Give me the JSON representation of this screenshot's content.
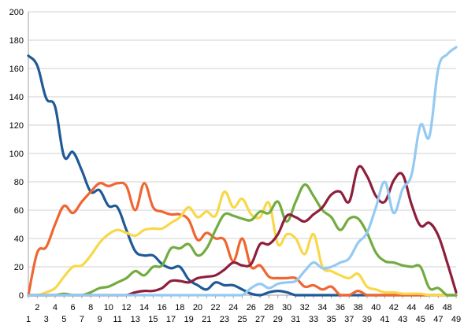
{
  "chart_data": {
    "type": "line",
    "x": [
      1,
      2,
      3,
      4,
      5,
      6,
      7,
      8,
      9,
      10,
      11,
      12,
      13,
      14,
      15,
      16,
      17,
      18,
      19,
      20,
      21,
      22,
      23,
      24,
      25,
      26,
      27,
      28,
      29,
      30,
      31,
      32,
      33,
      34,
      35,
      36,
      37,
      38,
      39,
      40,
      41,
      42,
      43,
      44,
      45,
      46,
      47,
      48,
      49
    ],
    "ylim": [
      0,
      200
    ],
    "yticks": [
      0,
      20,
      40,
      60,
      80,
      100,
      120,
      140,
      160,
      180,
      200
    ],
    "grid": true,
    "legend": "none",
    "series": [
      {
        "color": "#1f5a96",
        "values": [
          169,
          162,
          139,
          133,
          98,
          101,
          88,
          73,
          74,
          63,
          62,
          46,
          31,
          28,
          28,
          22,
          19,
          20,
          11,
          7,
          4,
          9,
          7,
          7,
          4,
          1,
          0,
          2,
          3,
          2,
          0,
          0,
          0,
          0,
          0,
          0,
          0,
          0,
          0,
          0,
          0,
          0,
          0,
          0,
          0,
          0,
          0,
          0,
          0
        ]
      },
      {
        "color": "#f06530",
        "values": [
          0,
          30,
          34,
          50,
          63,
          58,
          66,
          73,
          79,
          77,
          79,
          77,
          60,
          79,
          62,
          59,
          57,
          57,
          53,
          39,
          44,
          40,
          39,
          24,
          40,
          20,
          21,
          13,
          12,
          12,
          12,
          6,
          7,
          4,
          6,
          0,
          0,
          3,
          0,
          0,
          0,
          0,
          0,
          0,
          0,
          0,
          0,
          0,
          0
        ]
      },
      {
        "color": "#f8d84a",
        "values": [
          0,
          0,
          2,
          5,
          13,
          20,
          21,
          28,
          37,
          43,
          46,
          44,
          42,
          46,
          47,
          47,
          51,
          55,
          62,
          55,
          59,
          56,
          73,
          62,
          68,
          57,
          55,
          65,
          36,
          43,
          40,
          29,
          43,
          20,
          17,
          14,
          12,
          15,
          6,
          4,
          2,
          2,
          1,
          1,
          1,
          0,
          0,
          0,
          0
        ]
      },
      {
        "color": "#72ac40",
        "values": [
          0,
          0,
          0,
          0,
          1,
          0,
          0,
          2,
          5,
          6,
          9,
          12,
          17,
          14,
          20,
          21,
          33,
          33,
          36,
          28,
          33,
          46,
          57,
          56,
          54,
          53,
          59,
          58,
          66,
          52,
          66,
          78,
          70,
          60,
          55,
          46,
          54,
          54,
          44,
          30,
          24,
          23,
          21,
          20,
          20,
          5,
          5,
          0,
          0
        ]
      },
      {
        "color": "#8e1f3c",
        "values": [
          0,
          0,
          0,
          0,
          0,
          0,
          0,
          0,
          0,
          0,
          0,
          0,
          2,
          3,
          3,
          5,
          10,
          10,
          9,
          12,
          13,
          14,
          18,
          23,
          21,
          22,
          36,
          36,
          43,
          56,
          55,
          52,
          57,
          62,
          71,
          73,
          66,
          90,
          84,
          70,
          66,
          81,
          85,
          64,
          49,
          51,
          42,
          23,
          2
        ]
      },
      {
        "color": "#94caf2",
        "values": [
          0,
          0,
          0,
          0,
          0,
          0,
          0,
          0,
          0,
          0,
          0,
          0,
          0,
          0,
          0,
          0,
          0,
          0,
          0,
          0,
          0,
          0,
          0,
          0,
          0,
          5,
          8,
          5,
          8,
          9,
          10,
          17,
          23,
          19,
          20,
          23,
          26,
          37,
          44,
          62,
          80,
          58,
          75,
          85,
          120,
          112,
          160,
          170,
          175
        ]
      }
    ]
  }
}
